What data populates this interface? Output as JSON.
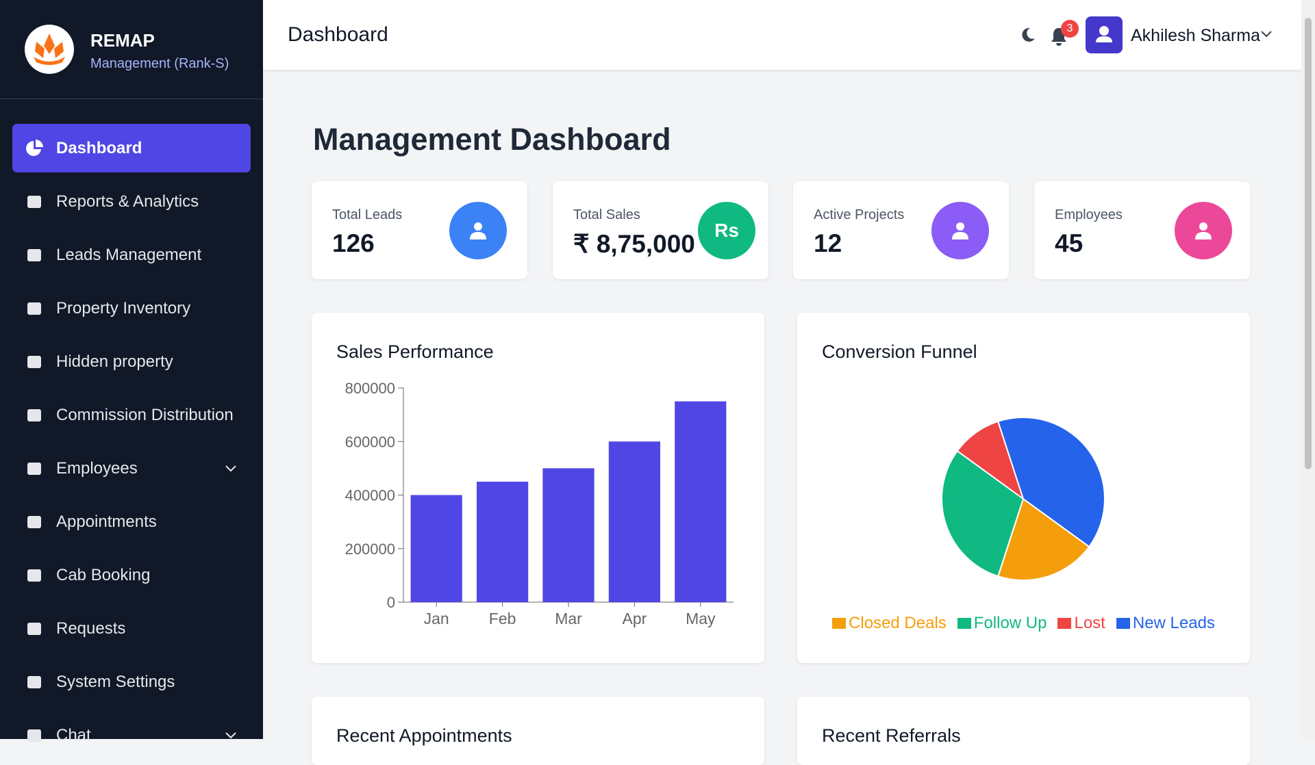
{
  "sidebar": {
    "brand": "REMAP",
    "subtitle": "Management (Rank-S)",
    "menu": [
      "Dashboard",
      "Reports & Analytics",
      "Leads Management",
      "Property Inventory",
      "Hidden property",
      "Commission Distribution",
      "Employees",
      "Appointments",
      "Cab Booking",
      "Requests",
      "System Settings",
      "Chat"
    ]
  },
  "header": {
    "title": "Dashboard",
    "notifications": 3,
    "user": "Akhilesh Sharma"
  },
  "page_title": "Management Dashboard",
  "stats": [
    {
      "label": "Total Leads",
      "value": "126"
    },
    {
      "label": "Total Sales",
      "value": "₹ 8,75,000",
      "icon_text": "Rs"
    },
    {
      "label": "Active Projects",
      "value": "12"
    },
    {
      "label": "Employees",
      "value": "45"
    }
  ],
  "sales_chart": {
    "type": "bar",
    "title": "Sales Performance",
    "categories": [
      "Jan",
      "Feb",
      "Mar",
      "Apr",
      "May"
    ],
    "values": [
      400000,
      450000,
      500000,
      600000,
      750000
    ],
    "color": "#4f46e5",
    "ylim": [
      0,
      800000
    ],
    "yticks": [
      0,
      200000,
      400000,
      600000,
      800000
    ]
  },
  "funnel_chart": {
    "type": "pie",
    "title": "Conversion Funnel",
    "categories": [
      "Closed Deals",
      "Follow Up",
      "Lost",
      "New Leads"
    ],
    "values": [
      20,
      30,
      10,
      40
    ],
    "colors": [
      "#f59e0b",
      "#10b981",
      "#ef4444",
      "#2563eb"
    ]
  },
  "sections": [
    "Recent Appointments",
    "Recent Referrals"
  ]
}
